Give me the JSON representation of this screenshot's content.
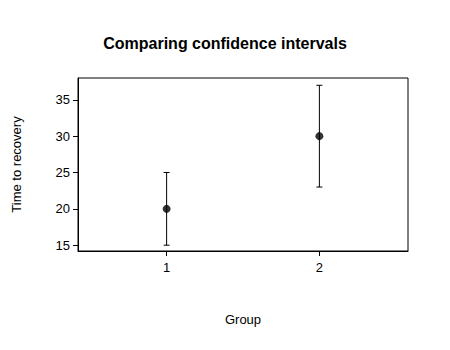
{
  "chart_data": {
    "type": "scatter",
    "title": "Comparing confidence intervals",
    "x_label": "Group",
    "y_label": "Time to recovery",
    "x": [
      1,
      2
    ],
    "values": [
      20,
      30
    ],
    "error_low": [
      15,
      23
    ],
    "error_high": [
      25,
      37
    ],
    "xlim": [
      0.42,
      2.58
    ],
    "ylim": [
      14.2,
      38
    ],
    "xticks": [
      1,
      2
    ],
    "yticks": [
      15,
      20,
      25,
      30,
      35
    ],
    "color": "#000000",
    "marker": "circle",
    "grid": false
  }
}
